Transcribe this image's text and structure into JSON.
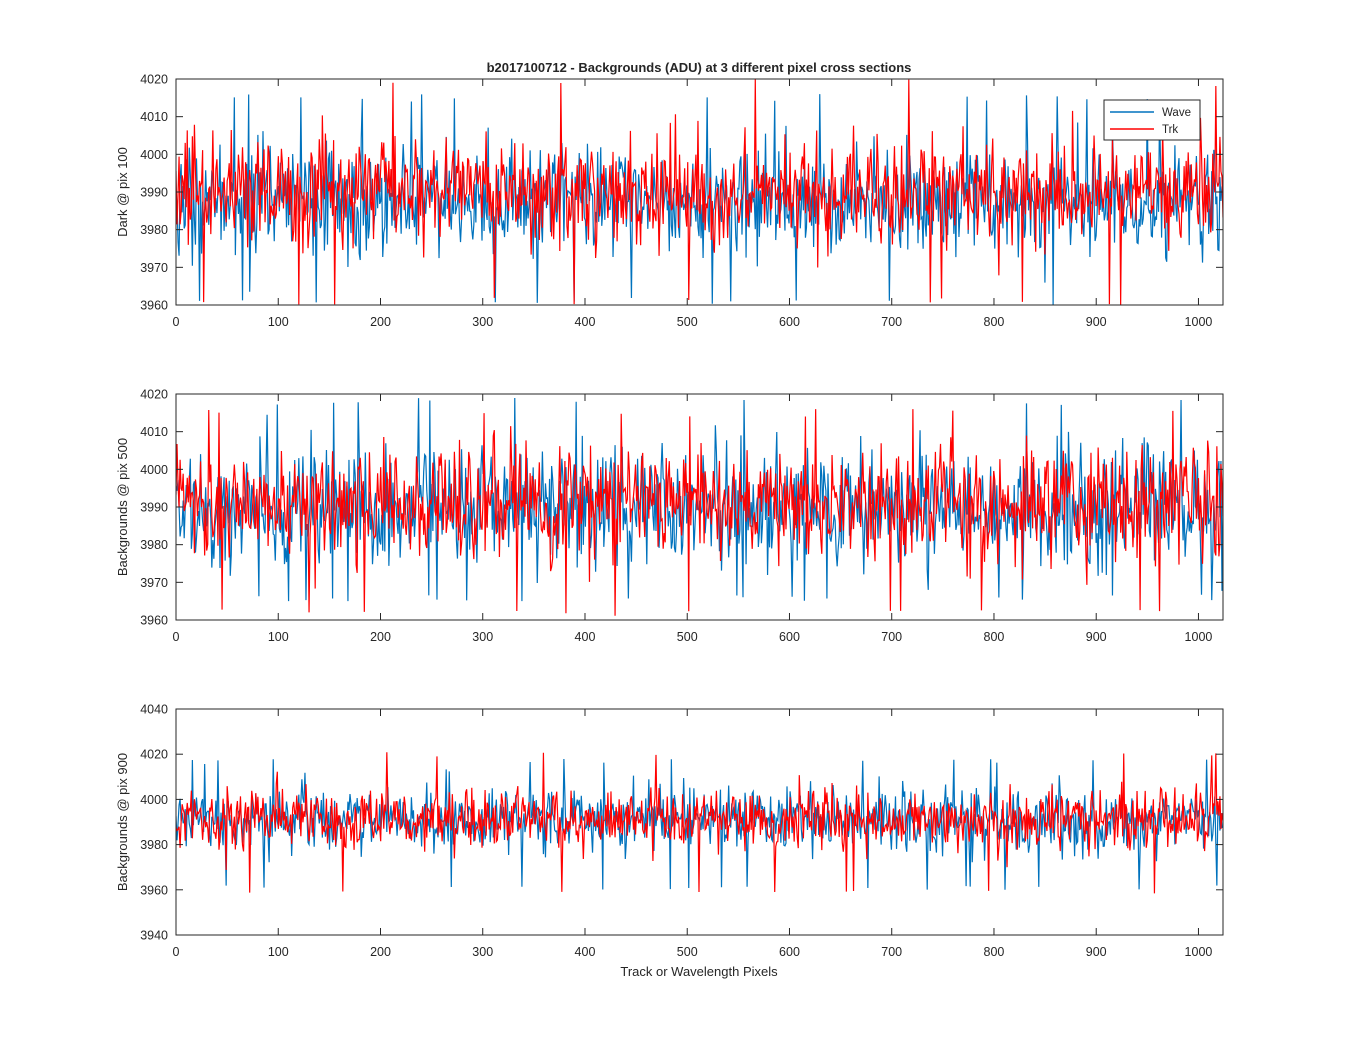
{
  "figure_title": "b2017100712 - Backgrounds (ADU) at 3 different pixel cross sections",
  "xlabel": "Track or Wavelength Pixels",
  "colors": {
    "wave": "#0072BD",
    "trk": "#FF0000",
    "axes": "#262626"
  },
  "legend": {
    "placement": "top-right",
    "entries": [
      "Wave",
      "Trk"
    ]
  },
  "chart_data": [
    {
      "type": "line",
      "title": "b2017100712 - Backgrounds (ADU) at 3 different pixel cross sections",
      "ylabel": "Dark @ pix 100",
      "xlabel": "",
      "xlim": [
        0,
        1024
      ],
      "ylim": [
        3960,
        4020
      ],
      "xticks": [
        0,
        100,
        200,
        300,
        400,
        500,
        600,
        700,
        800,
        900,
        1000
      ],
      "yticks": [
        3960,
        3970,
        3980,
        3990,
        4000,
        4010,
        4020
      ],
      "grid": false,
      "legend": "top-right",
      "series": [
        {
          "name": "Wave",
          "mean": 3988,
          "spread": 7,
          "min": 3960,
          "max": 4016,
          "points": 1024
        },
        {
          "name": "Trk",
          "mean": 3990,
          "spread": 7,
          "min": 3960,
          "max": 4020,
          "points": 1024
        }
      ]
    },
    {
      "type": "line",
      "ylabel": "Backgrounds @ pix 500",
      "xlabel": "",
      "xlim": [
        0,
        1024
      ],
      "ylim": [
        3960,
        4020
      ],
      "xticks": [
        0,
        100,
        200,
        300,
        400,
        500,
        600,
        700,
        800,
        900,
        1000
      ],
      "yticks": [
        3960,
        3970,
        3980,
        3990,
        4000,
        4010,
        4020
      ],
      "grid": false,
      "series": [
        {
          "name": "Wave",
          "mean": 3990,
          "spread": 7.5,
          "min": 3965,
          "max": 4019,
          "points": 1024
        },
        {
          "name": "Trk",
          "mean": 3991,
          "spread": 7.5,
          "min": 3961,
          "max": 4016,
          "points": 1024
        }
      ]
    },
    {
      "type": "line",
      "ylabel": "Backgrounds @ pix 900",
      "xlabel": "Track or Wavelength Pixels",
      "xlim": [
        0,
        1024
      ],
      "ylim": [
        3940,
        4040
      ],
      "xticks": [
        0,
        100,
        200,
        300,
        400,
        500,
        600,
        700,
        800,
        900,
        1000
      ],
      "yticks": [
        3940,
        3960,
        3980,
        4000,
        4020,
        4040
      ],
      "grid": false,
      "series": [
        {
          "name": "Wave",
          "mean": 3991,
          "spread": 7,
          "min": 3960,
          "max": 4018,
          "points": 1024
        },
        {
          "name": "Trk",
          "mean": 3991,
          "spread": 6.5,
          "min": 3958,
          "max": 4021,
          "points": 1024
        }
      ]
    }
  ]
}
